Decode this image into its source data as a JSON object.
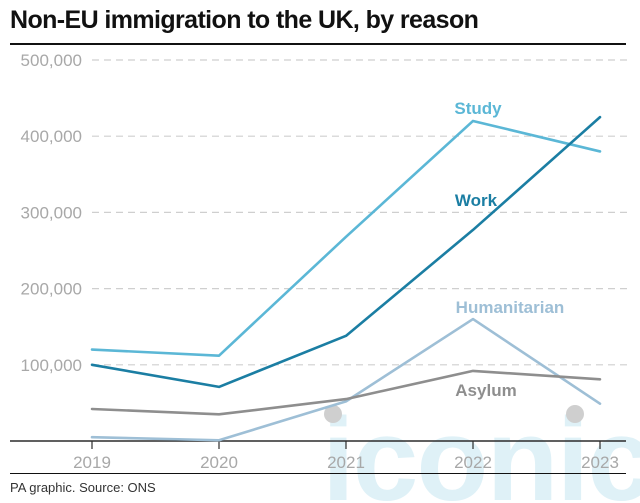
{
  "header": {
    "title": "Non-EU immigration to the UK, by reason"
  },
  "footer": {
    "source": "PA graphic. Source: ONS"
  },
  "watermark": {
    "text": "iconic",
    "color": "#dff1f7"
  },
  "chart_data": {
    "type": "line",
    "title": "Non-EU immigration to the UK, by reason",
    "xlabel": "",
    "ylabel": "",
    "x": [
      2019,
      2020,
      2021,
      2022,
      2023
    ],
    "x_tick_labels": [
      "2019",
      "2020",
      "2021",
      "2022",
      "2023"
    ],
    "ylim": [
      0,
      500000
    ],
    "y_ticks": [
      100000,
      200000,
      300000,
      400000,
      500000
    ],
    "y_tick_labels": [
      "100,000",
      "200,000",
      "300,000",
      "400,000",
      "500,000"
    ],
    "grid": "horizontal dashed",
    "legend": "inline labels next to lines",
    "series": [
      {
        "name": "Study",
        "color": "#5bb7d6",
        "values": [
          120000,
          112000,
          268000,
          420000,
          380000
        ]
      },
      {
        "name": "Work",
        "color": "#1b7ea3",
        "values": [
          100000,
          71000,
          138000,
          277000,
          425000
        ]
      },
      {
        "name": "Humanitarian",
        "color": "#9ebfd6",
        "values": [
          5000,
          1000,
          52000,
          160000,
          49000
        ]
      },
      {
        "name": "Asylum",
        "color": "#8e8e8e",
        "values": [
          42000,
          35000,
          55000,
          92000,
          81000
        ]
      }
    ]
  }
}
